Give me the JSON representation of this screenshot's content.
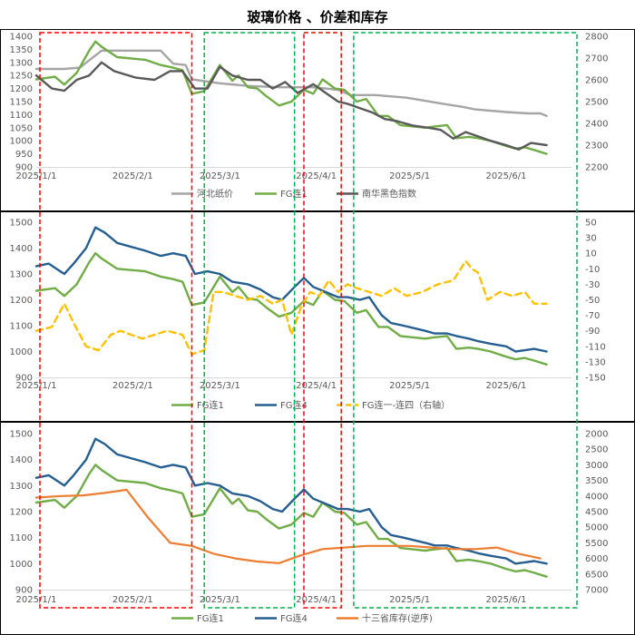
{
  "title": "玻璃价格 、价差和库存",
  "x_ticks": [
    "2025/1/1",
    "2025/2/1",
    "2025/3/1",
    "2025/4/1",
    "2025/5/1",
    "2025/6/1"
  ],
  "colors": {
    "light_green": "#70AD47",
    "gray": "#A5A5A5",
    "dark_gray": "#595959",
    "navy": "#255E91",
    "gold": "#FFC000",
    "orange": "#ED7D31",
    "red_box": "#FF0000",
    "green_box": "#00B050"
  },
  "chart_data": [
    {
      "type": "line",
      "x_range": [
        "2025-01-01",
        "2025-06-15"
      ],
      "y_left_ticks": [
        "1400",
        "1350",
        "1300",
        "1250",
        "1200",
        "1150",
        "1100",
        "1050",
        "1000",
        "950",
        "900"
      ],
      "y_left_range": [
        900,
        1400
      ],
      "y_right_ticks": [
        "2800",
        "2700",
        "2600",
        "2500",
        "2400",
        "2300",
        "2200"
      ],
      "y_right_range": [
        2200,
        2800
      ],
      "legend": [
        "河北纸价",
        "FG连1",
        "南华黑色指数"
      ],
      "series": [
        {
          "name": "河北纸价",
          "axis": "left",
          "color_key": "gray",
          "x": [
            "2025-01-01",
            "2025-01-10",
            "2025-01-15",
            "2025-01-22",
            "2025-02-10",
            "2025-02-14",
            "2025-02-18",
            "2025-02-20",
            "2025-03-01",
            "2025-03-10",
            "2025-03-20",
            "2025-03-31",
            "2025-04-08",
            "2025-04-12",
            "2025-04-20",
            "2025-04-30",
            "2025-05-10",
            "2025-05-18",
            "2025-05-22",
            "2025-06-01",
            "2025-06-08",
            "2025-06-12",
            "2025-06-14"
          ],
          "y": [
            1275,
            1275,
            1280,
            1345,
            1345,
            1295,
            1290,
            1235,
            1220,
            1210,
            1205,
            1205,
            1195,
            1175,
            1175,
            1165,
            1145,
            1130,
            1120,
            1110,
            1105,
            1105,
            1095
          ]
        },
        {
          "name": "FG连1",
          "axis": "left",
          "color_key": "light_green",
          "x": [
            "2025-01-01",
            "2025-01-07",
            "2025-01-10",
            "2025-01-14",
            "2025-01-18",
            "2025-01-20",
            "2025-01-22",
            "2025-01-27",
            "2025-02-05",
            "2025-02-10",
            "2025-02-14",
            "2025-02-17",
            "2025-02-20",
            "2025-02-24",
            "2025-03-01",
            "2025-03-05",
            "2025-03-07",
            "2025-03-10",
            "2025-03-13",
            "2025-03-16",
            "2025-03-20",
            "2025-03-24",
            "2025-03-28",
            "2025-03-31",
            "2025-04-03",
            "2025-04-07",
            "2025-04-10",
            "2025-04-14",
            "2025-04-17",
            "2025-04-21",
            "2025-04-24",
            "2025-04-28",
            "2025-05-06",
            "2025-05-09",
            "2025-05-13",
            "2025-05-16",
            "2025-05-20",
            "2025-05-23",
            "2025-05-27",
            "2025-06-01",
            "2025-06-04",
            "2025-06-07",
            "2025-06-10",
            "2025-06-14"
          ],
          "y": [
            1235,
            1245,
            1215,
            1260,
            1345,
            1380,
            1360,
            1320,
            1310,
            1290,
            1280,
            1270,
            1180,
            1190,
            1290,
            1230,
            1250,
            1205,
            1200,
            1170,
            1135,
            1150,
            1195,
            1180,
            1235,
            1200,
            1195,
            1150,
            1160,
            1095,
            1095,
            1060,
            1050,
            1055,
            1060,
            1010,
            1015,
            1010,
            1000,
            980,
            970,
            975,
            965,
            950
          ]
        },
        {
          "name": "南华黑色指数",
          "axis": "right",
          "color_key": "dark_gray",
          "x": [
            "2025-01-01",
            "2025-01-06",
            "2025-01-10",
            "2025-01-14",
            "2025-01-18",
            "2025-01-22",
            "2025-01-26",
            "2025-02-02",
            "2025-02-08",
            "2025-02-13",
            "2025-02-17",
            "2025-02-21",
            "2025-02-25",
            "2025-03-01",
            "2025-03-05",
            "2025-03-10",
            "2025-03-14",
            "2025-03-18",
            "2025-03-22",
            "2025-03-26",
            "2025-03-31",
            "2025-04-04",
            "2025-04-08",
            "2025-04-11",
            "2025-04-15",
            "2025-04-19",
            "2025-04-23",
            "2025-04-27",
            "2025-05-02",
            "2025-05-07",
            "2025-05-11",
            "2025-05-15",
            "2025-05-19",
            "2025-05-23",
            "2025-05-27",
            "2025-06-01",
            "2025-06-05",
            "2025-06-09",
            "2025-06-14"
          ],
          "y": [
            2620,
            2560,
            2550,
            2600,
            2620,
            2680,
            2640,
            2610,
            2600,
            2640,
            2640,
            2560,
            2560,
            2660,
            2620,
            2600,
            2600,
            2560,
            2590,
            2540,
            2580,
            2540,
            2500,
            2490,
            2470,
            2450,
            2420,
            2410,
            2390,
            2380,
            2370,
            2330,
            2360,
            2340,
            2320,
            2300,
            2280,
            2310,
            2300
          ]
        }
      ]
    },
    {
      "type": "line",
      "x_range": [
        "2025-01-01",
        "2025-06-15"
      ],
      "y_left_ticks": [
        "1500",
        "1400",
        "1300",
        "1200",
        "1100",
        "1000",
        "900"
      ],
      "y_left_range": [
        900,
        1500
      ],
      "y_right_ticks": [
        "50",
        "30",
        "10",
        "-10",
        "-30",
        "-50",
        "-70",
        "-90",
        "-110",
        "-130",
        "-150"
      ],
      "y_right_range": [
        -150,
        50
      ],
      "legend": [
        "FG连1",
        "FG连4",
        "FG连一-连四（右轴）"
      ],
      "series": [
        {
          "name": "FG连1",
          "axis": "left",
          "color_key": "light_green",
          "x": [
            "2025-01-01",
            "2025-01-07",
            "2025-01-10",
            "2025-01-14",
            "2025-01-18",
            "2025-01-20",
            "2025-01-22",
            "2025-01-27",
            "2025-02-05",
            "2025-02-10",
            "2025-02-14",
            "2025-02-17",
            "2025-02-20",
            "2025-02-24",
            "2025-03-01",
            "2025-03-05",
            "2025-03-07",
            "2025-03-10",
            "2025-03-13",
            "2025-03-16",
            "2025-03-20",
            "2025-03-24",
            "2025-03-28",
            "2025-03-31",
            "2025-04-03",
            "2025-04-07",
            "2025-04-10",
            "2025-04-14",
            "2025-04-17",
            "2025-04-21",
            "2025-04-24",
            "2025-04-28",
            "2025-05-06",
            "2025-05-09",
            "2025-05-13",
            "2025-05-16",
            "2025-05-20",
            "2025-05-23",
            "2025-05-27",
            "2025-06-01",
            "2025-06-04",
            "2025-06-07",
            "2025-06-10",
            "2025-06-14"
          ],
          "y": [
            1235,
            1245,
            1215,
            1260,
            1345,
            1380,
            1360,
            1320,
            1310,
            1290,
            1280,
            1270,
            1180,
            1190,
            1290,
            1230,
            1250,
            1205,
            1200,
            1170,
            1135,
            1150,
            1195,
            1180,
            1235,
            1200,
            1195,
            1150,
            1160,
            1095,
            1095,
            1060,
            1050,
            1055,
            1060,
            1010,
            1015,
            1010,
            1000,
            980,
            970,
            975,
            965,
            950
          ]
        },
        {
          "name": "FG连4",
          "axis": "left",
          "color_key": "navy",
          "x": [
            "2025-01-01",
            "2025-01-05",
            "2025-01-10",
            "2025-01-13",
            "2025-01-17",
            "2025-01-20",
            "2025-01-23",
            "2025-01-27",
            "2025-02-05",
            "2025-02-10",
            "2025-02-14",
            "2025-02-18",
            "2025-02-21",
            "2025-02-25",
            "2025-03-01",
            "2025-03-05",
            "2025-03-10",
            "2025-03-14",
            "2025-03-18",
            "2025-03-21",
            "2025-03-25",
            "2025-03-28",
            "2025-03-31",
            "2025-04-04",
            "2025-04-08",
            "2025-04-11",
            "2025-04-15",
            "2025-04-18",
            "2025-04-22",
            "2025-04-25",
            "2025-04-29",
            "2025-05-06",
            "2025-05-09",
            "2025-05-13",
            "2025-05-16",
            "2025-05-20",
            "2025-05-23",
            "2025-05-27",
            "2025-06-01",
            "2025-06-04",
            "2025-06-07",
            "2025-06-10",
            "2025-06-14"
          ],
          "y": [
            1330,
            1340,
            1300,
            1340,
            1400,
            1480,
            1460,
            1420,
            1390,
            1370,
            1380,
            1370,
            1300,
            1310,
            1300,
            1270,
            1260,
            1240,
            1210,
            1200,
            1250,
            1285,
            1250,
            1230,
            1210,
            1210,
            1200,
            1210,
            1140,
            1110,
            1100,
            1080,
            1070,
            1070,
            1060,
            1050,
            1040,
            1030,
            1020,
            1000,
            1005,
            1010,
            1000
          ]
        },
        {
          "name": "FG连一-连四（右轴）",
          "axis": "right",
          "color_key": "gold",
          "x": [
            "2025-01-01",
            "2025-01-06",
            "2025-01-10",
            "2025-01-13",
            "2025-01-17",
            "2025-01-21",
            "2025-01-25",
            "2025-01-28",
            "2025-02-04",
            "2025-02-12",
            "2025-02-17",
            "2025-02-20",
            "2025-02-24",
            "2025-02-27",
            "2025-03-02",
            "2025-03-06",
            "2025-03-10",
            "2025-03-14",
            "2025-03-18",
            "2025-03-21",
            "2025-03-24",
            "2025-03-27",
            "2025-03-30",
            "2025-04-02",
            "2025-04-05",
            "2025-04-08",
            "2025-04-11",
            "2025-04-14",
            "2025-04-18",
            "2025-04-22",
            "2025-04-26",
            "2025-04-30",
            "2025-05-05",
            "2025-05-10",
            "2025-05-15",
            "2025-05-19",
            "2025-05-21",
            "2025-05-23",
            "2025-05-26",
            "2025-05-30",
            "2025-06-03",
            "2025-06-07",
            "2025-06-10",
            "2025-06-14"
          ],
          "y": [
            -90,
            -85,
            -55,
            -80,
            -110,
            -115,
            -95,
            -90,
            -100,
            -90,
            -95,
            -120,
            -115,
            -40,
            -40,
            -45,
            -50,
            -45,
            -55,
            -50,
            -95,
            -60,
            -40,
            -45,
            -25,
            -40,
            -30,
            -35,
            -40,
            -45,
            -35,
            -45,
            -40,
            -30,
            -25,
            0,
            -10,
            -15,
            -50,
            -40,
            -45,
            -40,
            -55,
            -55
          ]
        }
      ]
    },
    {
      "type": "line",
      "x_range": [
        "2025-01-01",
        "2025-06-15"
      ],
      "y_left_ticks": [
        "1500",
        "1400",
        "1300",
        "1200",
        "1100",
        "1000",
        "900"
      ],
      "y_left_range": [
        900,
        1500
      ],
      "y_right_ticks": [
        "2000",
        "2500",
        "3000",
        "3500",
        "4000",
        "4500",
        "5000",
        "5500",
        "6000",
        "6500",
        "7000"
      ],
      "y_right_range": [
        2000,
        7000
      ],
      "y_right_inverted": true,
      "legend": [
        "FG连1",
        "FG连4",
        "十三省库存(逆序)"
      ],
      "series": [
        {
          "name": "FG连1",
          "axis": "left",
          "color_key": "light_green",
          "x": [
            "2025-01-01",
            "2025-01-07",
            "2025-01-10",
            "2025-01-14",
            "2025-01-18",
            "2025-01-20",
            "2025-01-22",
            "2025-01-27",
            "2025-02-05",
            "2025-02-10",
            "2025-02-14",
            "2025-02-17",
            "2025-02-20",
            "2025-02-24",
            "2025-03-01",
            "2025-03-05",
            "2025-03-07",
            "2025-03-10",
            "2025-03-13",
            "2025-03-16",
            "2025-03-20",
            "2025-03-24",
            "2025-03-28",
            "2025-03-31",
            "2025-04-03",
            "2025-04-07",
            "2025-04-10",
            "2025-04-14",
            "2025-04-17",
            "2025-04-21",
            "2025-04-24",
            "2025-04-28",
            "2025-05-06",
            "2025-05-09",
            "2025-05-13",
            "2025-05-16",
            "2025-05-20",
            "2025-05-23",
            "2025-05-27",
            "2025-06-01",
            "2025-06-04",
            "2025-06-07",
            "2025-06-10",
            "2025-06-14"
          ],
          "y": [
            1235,
            1245,
            1215,
            1260,
            1345,
            1380,
            1360,
            1320,
            1310,
            1290,
            1280,
            1270,
            1180,
            1190,
            1290,
            1230,
            1250,
            1205,
            1200,
            1170,
            1135,
            1150,
            1195,
            1180,
            1235,
            1200,
            1195,
            1150,
            1160,
            1095,
            1095,
            1060,
            1050,
            1055,
            1060,
            1010,
            1015,
            1010,
            1000,
            980,
            970,
            975,
            965,
            950
          ]
        },
        {
          "name": "FG连4",
          "axis": "left",
          "color_key": "navy",
          "x": [
            "2025-01-01",
            "2025-01-05",
            "2025-01-10",
            "2025-01-13",
            "2025-01-17",
            "2025-01-20",
            "2025-01-23",
            "2025-01-27",
            "2025-02-05",
            "2025-02-10",
            "2025-02-14",
            "2025-02-18",
            "2025-02-21",
            "2025-02-25",
            "2025-03-01",
            "2025-03-05",
            "2025-03-10",
            "2025-03-14",
            "2025-03-18",
            "2025-03-21",
            "2025-03-25",
            "2025-03-28",
            "2025-03-31",
            "2025-04-04",
            "2025-04-08",
            "2025-04-11",
            "2025-04-15",
            "2025-04-18",
            "2025-04-22",
            "2025-04-25",
            "2025-04-29",
            "2025-05-06",
            "2025-05-09",
            "2025-05-13",
            "2025-05-16",
            "2025-05-20",
            "2025-05-23",
            "2025-05-27",
            "2025-06-01",
            "2025-06-04",
            "2025-06-07",
            "2025-06-10",
            "2025-06-14"
          ],
          "y": [
            1330,
            1340,
            1300,
            1340,
            1400,
            1480,
            1460,
            1420,
            1390,
            1370,
            1380,
            1370,
            1300,
            1310,
            1300,
            1270,
            1260,
            1240,
            1210,
            1200,
            1250,
            1285,
            1250,
            1230,
            1210,
            1210,
            1200,
            1210,
            1140,
            1110,
            1100,
            1080,
            1070,
            1070,
            1060,
            1050,
            1040,
            1030,
            1020,
            1000,
            1005,
            1010,
            1000
          ]
        },
        {
          "name": "十三省库存(逆序)",
          "axis": "right",
          "color_key": "orange",
          "x": [
            "2025-01-01",
            "2025-01-09",
            "2025-01-16",
            "2025-01-23",
            "2025-01-30",
            "2025-02-06",
            "2025-02-13",
            "2025-02-20",
            "2025-02-27",
            "2025-03-06",
            "2025-03-13",
            "2025-03-20",
            "2025-03-27",
            "2025-04-03",
            "2025-04-10",
            "2025-04-17",
            "2025-04-24",
            "2025-05-01",
            "2025-05-08",
            "2025-05-15",
            "2025-05-22",
            "2025-05-29",
            "2025-06-05",
            "2025-06-12"
          ],
          "y": [
            4050,
            4000,
            3980,
            3900,
            3800,
            4700,
            5500,
            5600,
            5850,
            6000,
            6100,
            6150,
            5900,
            5700,
            5650,
            5600,
            5600,
            5600,
            5650,
            5700,
            5700,
            5650,
            5850,
            6000
          ]
        }
      ]
    }
  ],
  "highlight_boxes": [
    {
      "style": "red",
      "from": "2025-01-01",
      "to": "2025-02-20"
    },
    {
      "style": "green",
      "from": "2025-02-24",
      "to": "2025-03-25"
    },
    {
      "style": "red",
      "from": "2025-03-28",
      "to": "2025-04-09"
    },
    {
      "style": "green",
      "from": "2025-04-13",
      "to": "2025-06-30"
    }
  ]
}
